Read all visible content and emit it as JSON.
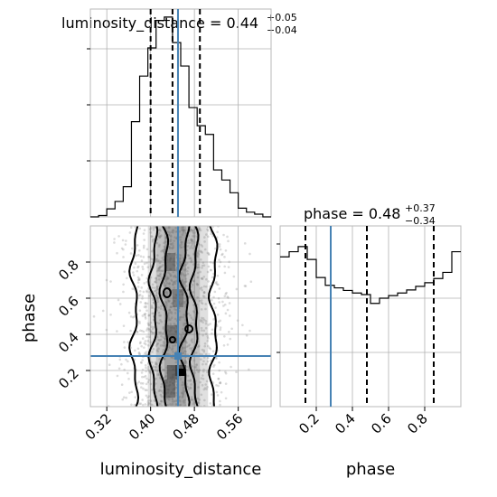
{
  "chart_data": {
    "type": "corner",
    "parameters": [
      "luminosity_distance",
      "phase"
    ],
    "truth": {
      "luminosity_distance": 0.45,
      "phase": 0.28
    },
    "panels": {
      "luminosity_distance_hist": {
        "title_main": "luminosity_distance = 0.44",
        "title_sup": "+0.05",
        "title_sub": "−0.04",
        "xlim": [
          0.29,
          0.62
        ],
        "quantiles": [
          0.4,
          0.44,
          0.49
        ],
        "bin_edges": [
          0.29,
          0.305,
          0.32,
          0.335,
          0.35,
          0.365,
          0.38,
          0.395,
          0.41,
          0.425,
          0.44,
          0.455,
          0.47,
          0.485,
          0.5,
          0.515,
          0.53,
          0.545,
          0.56,
          0.575,
          0.59,
          0.605,
          0.62
        ],
        "counts": [
          0.0,
          0.2,
          1.2,
          2.3,
          4.5,
          14.2,
          21.0,
          25.2,
          29.3,
          29.8,
          26.0,
          22.5,
          16.3,
          13.6,
          12.3,
          7.0,
          5.5,
          3.6,
          1.3,
          0.7,
          0.4,
          0.0
        ],
        "ylim": [
          0,
          31
        ]
      },
      "phase_hist": {
        "title_main": "phase = 0.48",
        "title_sup": "+0.37",
        "title_sub": "−0.34",
        "xlim": [
          0.0,
          1.0
        ],
        "xticks": [
          "0.2",
          "0.4",
          "0.6",
          "0.8"
        ],
        "xtick_values": [
          0.2,
          0.4,
          0.6,
          0.8
        ],
        "quantiles": [
          0.14,
          0.48,
          0.85
        ],
        "bin_edges": [
          0.0,
          0.05,
          0.1,
          0.15,
          0.2,
          0.25,
          0.3,
          0.35,
          0.4,
          0.45,
          0.5,
          0.55,
          0.6,
          0.65,
          0.7,
          0.75,
          0.8,
          0.85,
          0.9,
          0.95,
          1.0
        ],
        "counts": [
          2.9,
          3.0,
          3.1,
          2.85,
          2.5,
          2.35,
          2.3,
          2.25,
          2.2,
          2.17,
          2.0,
          2.1,
          2.15,
          2.2,
          2.26,
          2.33,
          2.4,
          2.48,
          2.6,
          3.0
        ],
        "ylim": [
          0,
          3.5
        ]
      },
      "joint": {
        "xlabel": "luminosity_distance",
        "ylabel": "phase",
        "xlim": [
          0.29,
          0.62
        ],
        "ylim": [
          0.0,
          1.0
        ],
        "xticks": [
          "0.32",
          "0.40",
          "0.48",
          "0.56"
        ],
        "xtick_values": [
          0.32,
          0.4,
          0.48,
          0.56
        ],
        "yticks": [
          "0.2",
          "0.4",
          "0.6",
          "0.8"
        ],
        "ytick_values": [
          0.2,
          0.4,
          0.6,
          0.8
        ],
        "phase_xlabel": "phase"
      }
    },
    "colors": {
      "truth": "#4682b4",
      "hist": "#000000",
      "grid": "#b0b0b0"
    }
  }
}
